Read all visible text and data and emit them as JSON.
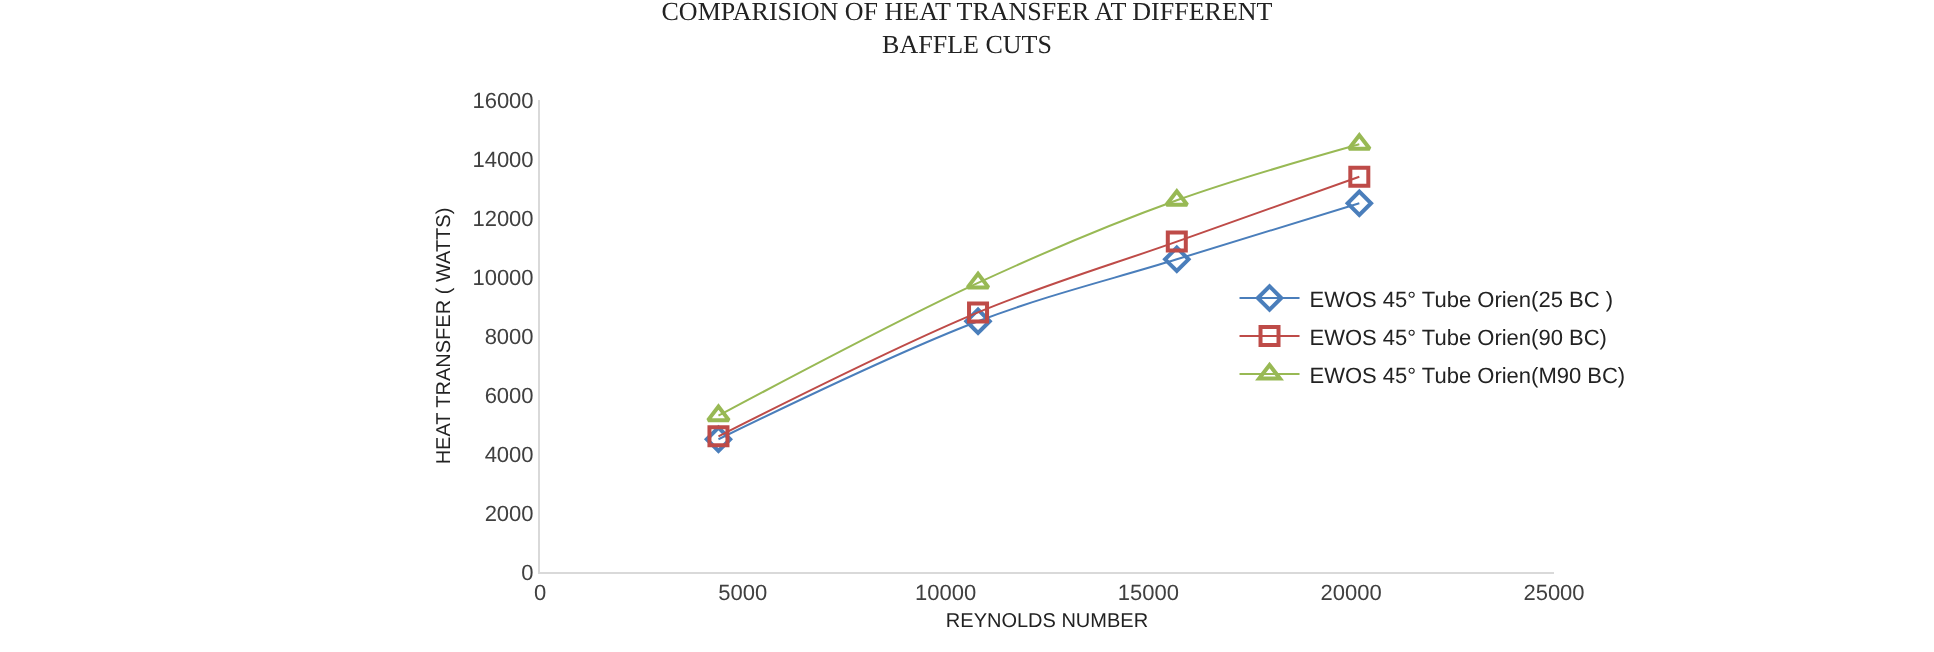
{
  "chart_data": {
    "type": "line",
    "title": "COMPARISION OF HEAT TRANSFER AT DIFFERENT\nBAFFLE CUTS",
    "xlabel": "REYNOLDS NUMBER",
    "ylabel": "HEAT TRANSFER ( WATTS)",
    "x": [
      4400,
      10800,
      15700,
      20200
    ],
    "series": [
      {
        "name": "EWOS 45° Tube Orien(25 BC )",
        "color": "#4a7ebb",
        "marker": "diamond",
        "values": [
          4500,
          8500,
          10600,
          12500
        ]
      },
      {
        "name": "EWOS 45° Tube Orien(90 BC)",
        "color": "#be4b48",
        "marker": "square",
        "values": [
          4600,
          8800,
          11200,
          13400
        ]
      },
      {
        "name": "EWOS 45° Tube Orien(M90 BC)",
        "color": "#98b954",
        "marker": "triangle",
        "values": [
          5300,
          9800,
          12600,
          14500
        ]
      }
    ],
    "xlim": [
      0,
      25000
    ],
    "xticks": [
      0,
      5000,
      10000,
      15000,
      20000,
      25000
    ],
    "ylim": [
      0,
      16000
    ],
    "yticks": [
      0,
      2000,
      4000,
      6000,
      8000,
      10000,
      12000,
      14000,
      16000
    ],
    "grid": false,
    "legend": "right"
  }
}
